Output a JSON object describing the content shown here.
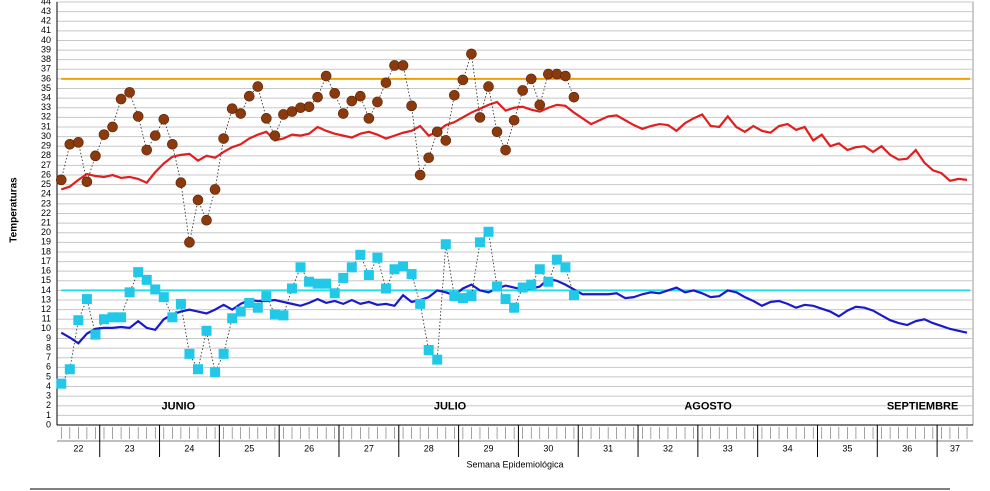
{
  "chart_data": {
    "type": "line",
    "y_label": "Temperaturas",
    "x_label": "Semana Epidemiológica",
    "xlim": [
      -0.5,
      106.7
    ],
    "ylim": [
      0,
      44
    ],
    "yticks": [
      0,
      1,
      2,
      3,
      4,
      5,
      6,
      7,
      8,
      9,
      10,
      11,
      12,
      13,
      14,
      15,
      16,
      17,
      18,
      19,
      20,
      21,
      22,
      23,
      24,
      25,
      26,
      27,
      28,
      29,
      30,
      31,
      32,
      33,
      34,
      35,
      36,
      37,
      38,
      39,
      40,
      41,
      42,
      43,
      44
    ],
    "grid": true,
    "week_bounds": [
      4.5,
      11.5,
      18.5,
      25.5,
      32.5,
      39.5,
      46.5,
      53.5,
      60.5,
      67.5,
      74.5,
      81.5,
      88.5,
      95.5,
      102.5
    ],
    "week_labels": [
      22,
      23,
      24,
      25,
      26,
      27,
      28,
      29,
      30,
      31,
      32,
      33,
      34,
      35,
      36,
      37
    ],
    "annotations": [
      {
        "text": "JUNIO",
        "x": 13.7,
        "y": 1.9
      },
      {
        "text": "JULIO",
        "x": 45.5,
        "y": 1.9
      },
      {
        "text": "AGOSTO",
        "x": 75.7,
        "y": 1.9
      },
      {
        "text": "SEPTIEMBRE",
        "x": 100.8,
        "y": 1.9
      }
    ],
    "hlines": [
      {
        "value": 36,
        "color": "#f0a000"
      },
      {
        "value": 14,
        "color": "#22e0e8"
      }
    ],
    "x": [
      0,
      1,
      2,
      3,
      4,
      5,
      6,
      7,
      8,
      9,
      10,
      11,
      12,
      13,
      14,
      15,
      16,
      17,
      18,
      19,
      20,
      21,
      22,
      23,
      24,
      25,
      26,
      27,
      28,
      29,
      30,
      31,
      32,
      33,
      34,
      35,
      36,
      37,
      38,
      39,
      40,
      41,
      42,
      43,
      44,
      45,
      46,
      47,
      48,
      49,
      50,
      51,
      52,
      53,
      54,
      55,
      56,
      57,
      58,
      59,
      60,
      61,
      62,
      63,
      64,
      65,
      66,
      67,
      68,
      69,
      70,
      71,
      72,
      73,
      74,
      75,
      76,
      77,
      78,
      79,
      80,
      81,
      82,
      83,
      84,
      85,
      86,
      87,
      88,
      89,
      90,
      91,
      92,
      93,
      94,
      95,
      96,
      97,
      98,
      99,
      100,
      101,
      102,
      103,
      104,
      105,
      106
    ],
    "series": [
      {
        "color": "#e02020",
        "style": "line",
        "values": [
          24.5,
          24.8,
          25.5,
          26.1,
          25.9,
          25.8,
          26,
          25.7,
          25.8,
          25.6,
          25.2,
          26.3,
          27.2,
          27.9,
          28.1,
          28.2,
          27.5,
          28,
          27.8,
          28.4,
          28.9,
          29.2,
          29.8,
          30.2,
          30.5,
          29.6,
          29.8,
          30.2,
          30.1,
          30.3,
          31,
          30.6,
          30.3,
          30.1,
          29.9,
          30.3,
          30.5,
          30.2,
          29.8,
          30.1,
          30.4,
          30.6,
          31.1,
          30.1,
          30.5,
          31.2,
          31.5,
          32,
          32.5,
          32.9,
          33.3,
          33.6,
          32.7,
          33,
          33.1,
          32.8,
          32.6,
          33,
          33.3,
          33.2,
          32.5,
          31.9,
          31.3,
          31.7,
          32.1,
          32.2,
          31.7,
          31.2,
          30.8,
          31.1,
          31.3,
          31.2,
          30.6,
          31.4,
          31.9,
          32.3,
          31.1,
          31,
          32.1,
          31,
          30.5,
          31.1,
          30.6,
          30.4,
          31.1,
          31.3,
          30.7,
          31,
          29.6,
          30.2,
          29,
          29.3,
          28.6,
          28.9,
          29,
          28.4,
          29,
          28.1,
          27.6,
          27.7,
          28.6,
          27.3,
          26.5,
          26.2,
          25.4,
          25.6,
          25.5
        ]
      },
      {
        "color": "#1a1acc",
        "style": "line",
        "values": [
          9.6,
          9.1,
          8.5,
          9.5,
          10,
          10.1,
          10.1,
          10.2,
          10.1,
          10.8,
          10.1,
          9.9,
          11,
          11.5,
          11.8,
          12,
          11.8,
          11.6,
          12,
          12.5,
          12,
          12.6,
          13,
          12.9,
          12.9,
          13,
          12.8,
          12.6,
          12.4,
          12.7,
          13.1,
          12.7,
          12.9,
          12.6,
          13,
          12.6,
          12.8,
          12.5,
          12.6,
          12.4,
          13.5,
          12.8,
          13,
          13.3,
          14,
          13.8,
          13.5,
          14.2,
          14.6,
          14,
          13.8,
          14.2,
          14.5,
          14.3,
          14.1,
          14.2,
          14.4,
          15.2,
          15,
          14.6,
          14.1,
          13.6,
          13.6,
          13.6,
          13.6,
          13.7,
          13.2,
          13.3,
          13.6,
          13.8,
          13.7,
          14,
          14.3,
          13.8,
          14,
          13.7,
          13.3,
          13.4,
          14,
          13.8,
          13.3,
          12.9,
          12.4,
          12.8,
          12.9,
          12.6,
          12.2,
          12.5,
          12.4,
          12.1,
          11.8,
          11.3,
          11.9,
          12.3,
          12.2,
          11.9,
          11.4,
          10.9,
          10.6,
          10.4,
          10.8,
          11,
          10.6,
          10.3,
          10,
          9.8,
          9.6
        ]
      },
      {
        "color": "#8b3a0e",
        "style": "markers",
        "marker": "circle",
        "values": [
          25.5,
          29.2,
          29.4,
          25.3,
          28,
          30.2,
          31,
          33.9,
          34.6,
          32.1,
          28.6,
          30.1,
          31.8,
          29.2,
          25.2,
          19,
          23.4,
          21.3,
          24.5,
          29.8,
          32.9,
          32.4,
          34.2,
          35.2,
          31.9,
          30.1,
          32.3,
          32.6,
          33,
          33.1,
          34.1,
          36.3,
          34.5,
          32.4,
          33.7,
          34.2,
          31.9,
          33.6,
          35.6,
          37.4,
          37.4,
          33.2,
          26,
          27.8,
          30.5,
          29.6,
          34.3,
          35.9,
          38.6,
          32,
          35.2,
          30.5,
          28.6,
          31.7,
          34.8,
          36,
          33.3,
          36.5,
          36.5,
          36.3,
          34.1,
          null,
          null,
          null,
          null,
          null,
          null,
          null,
          null,
          null,
          null,
          null,
          null,
          null,
          null,
          null,
          null,
          null,
          null,
          null,
          null,
          null,
          null,
          null,
          null,
          null,
          null,
          null,
          null,
          null,
          null,
          null,
          null,
          null,
          null,
          null,
          null,
          null,
          null,
          null,
          null,
          null,
          null,
          null,
          null,
          null,
          null
        ]
      },
      {
        "color": "#22c8e8",
        "style": "markers",
        "marker": "square",
        "values": [
          4.3,
          5.8,
          10.9,
          13.1,
          9.4,
          11,
          11.2,
          11.2,
          13.8,
          15.9,
          15.1,
          14.1,
          13.3,
          11.2,
          12.6,
          7.4,
          5.8,
          9.8,
          5.5,
          7.4,
          11.1,
          11.8,
          12.7,
          12.2,
          13.4,
          11.5,
          11.4,
          14.2,
          16.4,
          14.9,
          14.7,
          14.7,
          13.7,
          15.3,
          16.4,
          17.7,
          15.6,
          17.4,
          14.2,
          16.2,
          16.5,
          15.7,
          12.6,
          7.8,
          6.8,
          18.8,
          13.4,
          13.2,
          13.4,
          19,
          20.1,
          14.4,
          13.1,
          12.2,
          14.3,
          14.6,
          16.2,
          14.9,
          17.2,
          16.4,
          13.5,
          null,
          null,
          null,
          null,
          null,
          null,
          null,
          null,
          null,
          null,
          null,
          null,
          null,
          null,
          null,
          null,
          null,
          null,
          null,
          null,
          null,
          null,
          null,
          null,
          null,
          null,
          null,
          null,
          null,
          null,
          null,
          null,
          null,
          null,
          null,
          null,
          null,
          null,
          null,
          null,
          null,
          null,
          null,
          null,
          null,
          null
        ]
      }
    ]
  }
}
